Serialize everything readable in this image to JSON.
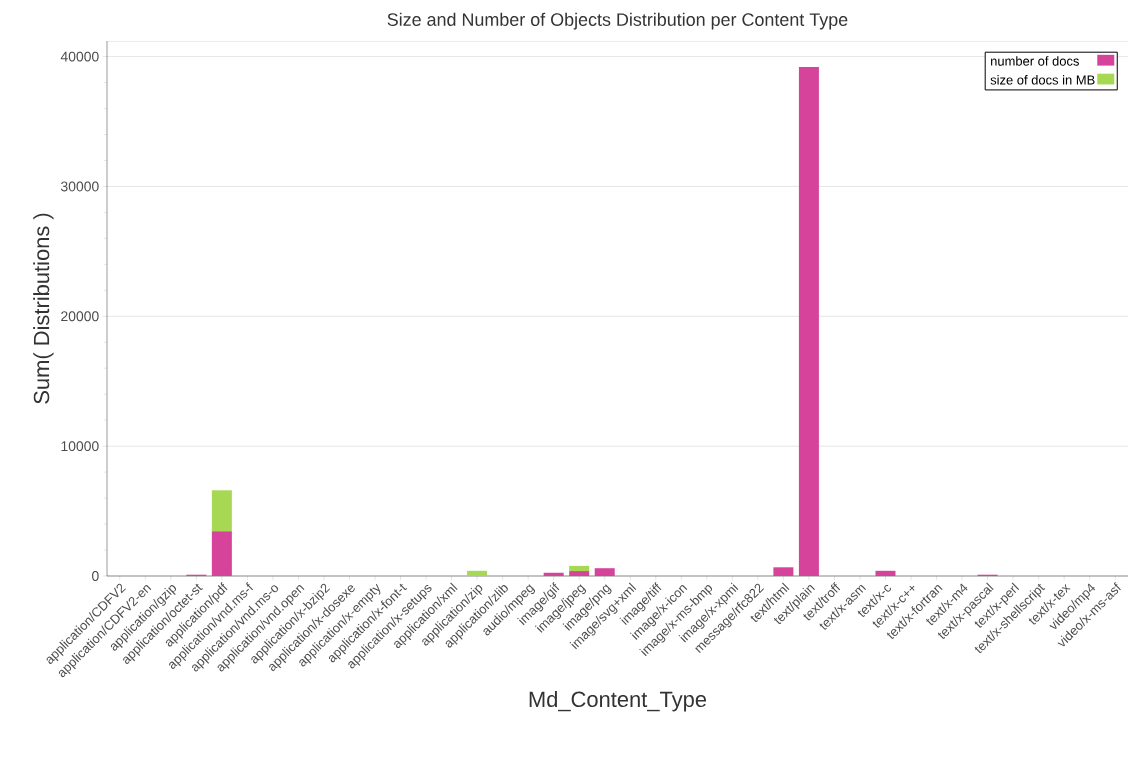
{
  "chart_data": {
    "type": "bar",
    "stacked": true,
    "title": "Size and Number of Objects Distribution per Content Type",
    "xlabel": "Md_Content_Type",
    "ylabel": "Sum( Distributions )",
    "categories": [
      "application/CDFV2",
      "application/CDFV2-en",
      "application/gzip",
      "application/octet-st",
      "application/pdf",
      "application/vnd.ms-f",
      "application/vnd.ms-o",
      "application/vnd.open",
      "application/x-bzip2",
      "application/x-dosexe",
      "application/x-empty",
      "application/x-font-t",
      "application/x-setups",
      "application/xml",
      "application/zip",
      "application/zlib",
      "audio/mpeg",
      "image/gif",
      "image/jpeg",
      "image/png",
      "image/svg+xml",
      "image/tiff",
      "image/x-icon",
      "image/x-ms-bmp",
      "image/x-xpmi",
      "message/rfc822",
      "text/html",
      "text/plain",
      "text/troff",
      "text/x-asm",
      "text/x-c",
      "text/x-c++",
      "text/x-fortran",
      "text/x-m4",
      "text/x-pascal",
      "text/x-perl",
      "text/x-shellscript",
      "text/x-tex",
      "video/mp4",
      "video/x-ms-asf"
    ],
    "series": [
      {
        "name": "number of docs",
        "color": "#d6439a",
        "values": [
          0,
          0,
          0,
          100,
          3450,
          0,
          0,
          0,
          0,
          0,
          0,
          0,
          0,
          0,
          0,
          0,
          0,
          250,
          380,
          600,
          0,
          0,
          0,
          0,
          0,
          0,
          670,
          39200,
          0,
          0,
          400,
          0,
          0,
          0,
          100,
          0,
          0,
          0,
          0,
          0
        ]
      },
      {
        "name": "size of docs in MB",
        "color": "#a6d854",
        "values": [
          0,
          0,
          0,
          0,
          3150,
          0,
          0,
          0,
          0,
          0,
          0,
          0,
          0,
          0,
          400,
          0,
          0,
          0,
          400,
          0,
          0,
          0,
          0,
          0,
          0,
          0,
          0,
          0,
          0,
          0,
          0,
          0,
          0,
          0,
          0,
          0,
          0,
          0,
          0,
          0
        ]
      }
    ],
    "ylim": [
      0,
      41200
    ],
    "yticks": [
      0,
      10000,
      20000,
      30000,
      40000
    ],
    "grid": "y",
    "legend": "top right"
  }
}
